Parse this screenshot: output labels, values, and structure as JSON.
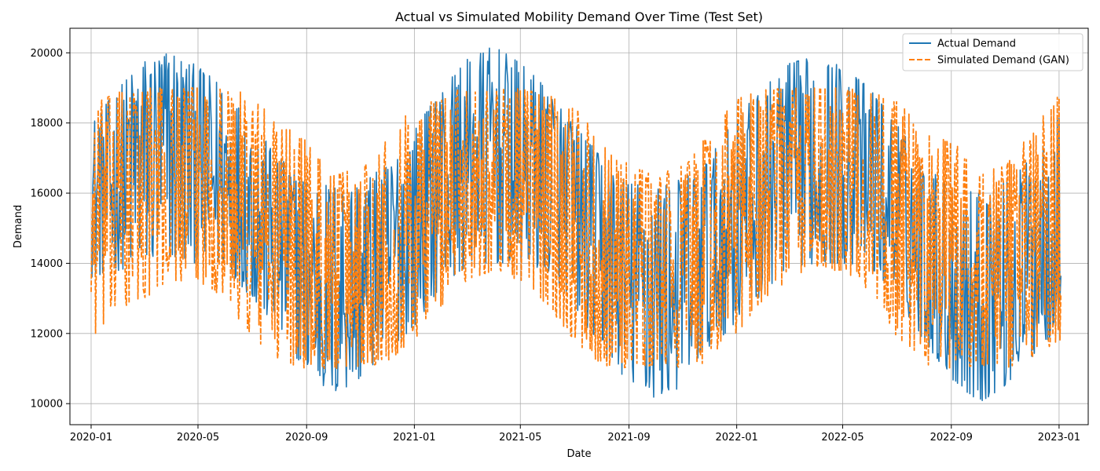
{
  "chart_data": {
    "type": "line",
    "title": "Actual vs Simulated Mobility Demand Over Time (Test Set)",
    "xlabel": "Date",
    "ylabel": "Demand",
    "x_range": [
      "2019-12-08",
      "2023-02-03"
    ],
    "x_ticks": [
      "2020-01",
      "2020-05",
      "2020-09",
      "2021-01",
      "2021-05",
      "2021-09",
      "2022-01",
      "2022-05",
      "2022-09",
      "2023-01"
    ],
    "ylim": [
      9400,
      20700
    ],
    "y_ticks": [
      10000,
      12000,
      14000,
      16000,
      18000,
      20000
    ],
    "grid": true,
    "legend_position": "top-right",
    "series": [
      {
        "name": "Actual Demand",
        "color": "#1f77b4",
        "style": "solid",
        "envelope": {
          "dates": [
            "2020-01-01",
            "2020-02-01",
            "2020-03-01",
            "2020-04-01",
            "2020-05-01",
            "2020-06-01",
            "2020-07-01",
            "2020-08-01",
            "2020-09-01",
            "2020-10-01",
            "2020-11-01",
            "2020-12-01",
            "2021-01-01",
            "2021-02-01",
            "2021-03-01",
            "2021-04-01",
            "2021-05-01",
            "2021-06-01",
            "2021-07-01",
            "2021-08-01",
            "2021-09-01",
            "2021-10-01",
            "2021-11-01",
            "2021-12-01",
            "2022-01-01",
            "2022-02-01",
            "2022-03-01",
            "2022-04-01",
            "2022-05-01",
            "2022-06-01",
            "2022-07-01",
            "2022-08-01",
            "2022-09-01",
            "2022-10-01",
            "2022-11-01",
            "2022-12-01",
            "2023-01-01"
          ],
          "upper": [
            18000,
            19000,
            19800,
            20100,
            19600,
            19000,
            18000,
            17000,
            16400,
            16200,
            16300,
            16800,
            17800,
            19000,
            19800,
            20200,
            19700,
            19000,
            18000,
            17000,
            16300,
            16200,
            16400,
            17000,
            18200,
            19000,
            19700,
            19900,
            19600,
            19000,
            18000,
            16800,
            16200,
            16000,
            16300,
            17000,
            18200
          ],
          "lower": [
            13600,
            13800,
            14000,
            14100,
            14000,
            13900,
            13000,
            12000,
            10900,
            10200,
            10700,
            11500,
            12200,
            13400,
            13900,
            14000,
            14000,
            13800,
            12800,
            11500,
            10600,
            10100,
            10500,
            11600,
            12300,
            13200,
            13900,
            14000,
            14000,
            13900,
            13000,
            11800,
            10700,
            10000,
            10500,
            11300,
            12200
          ]
        }
      },
      {
        "name": "Simulated Demand (GAN)",
        "color": "#ff7f0e",
        "style": "dashed",
        "envelope": {
          "dates": [
            "2020-01-01",
            "2020-02-01",
            "2020-03-01",
            "2020-04-01",
            "2020-05-01",
            "2020-06-01",
            "2020-07-01",
            "2020-08-01",
            "2020-09-01",
            "2020-10-01",
            "2020-11-01",
            "2020-12-01",
            "2021-01-01",
            "2021-02-01",
            "2021-03-01",
            "2021-04-01",
            "2021-05-01",
            "2021-06-01",
            "2021-07-01",
            "2021-08-01",
            "2021-09-01",
            "2021-10-01",
            "2021-11-01",
            "2021-12-01",
            "2022-01-01",
            "2022-02-01",
            "2022-03-01",
            "2022-04-01",
            "2022-05-01",
            "2022-06-01",
            "2022-07-01",
            "2022-08-01",
            "2022-09-01",
            "2022-10-01",
            "2022-11-01",
            "2022-12-01",
            "2023-01-01"
          ],
          "upper": [
            18500,
            18900,
            19000,
            19000,
            19000,
            19000,
            18800,
            18000,
            17500,
            16500,
            16800,
            17600,
            18500,
            18900,
            19000,
            19000,
            19000,
            18800,
            18500,
            17500,
            16800,
            16500,
            16800,
            17700,
            18700,
            19000,
            19000,
            19000,
            19000,
            18900,
            18700,
            17800,
            17500,
            16800,
            16800,
            17800,
            18800
          ],
          "lower": [
            11800,
            12500,
            13000,
            13500,
            13500,
            13000,
            11800,
            11200,
            11000,
            11000,
            11000,
            11200,
            11800,
            12800,
            13500,
            13800,
            13500,
            12800,
            11800,
            11100,
            11000,
            11000,
            11000,
            11200,
            12000,
            13000,
            13500,
            13800,
            13800,
            13200,
            11900,
            11100,
            11000,
            11000,
            11000,
            11300,
            11800
          ]
        }
      }
    ]
  }
}
